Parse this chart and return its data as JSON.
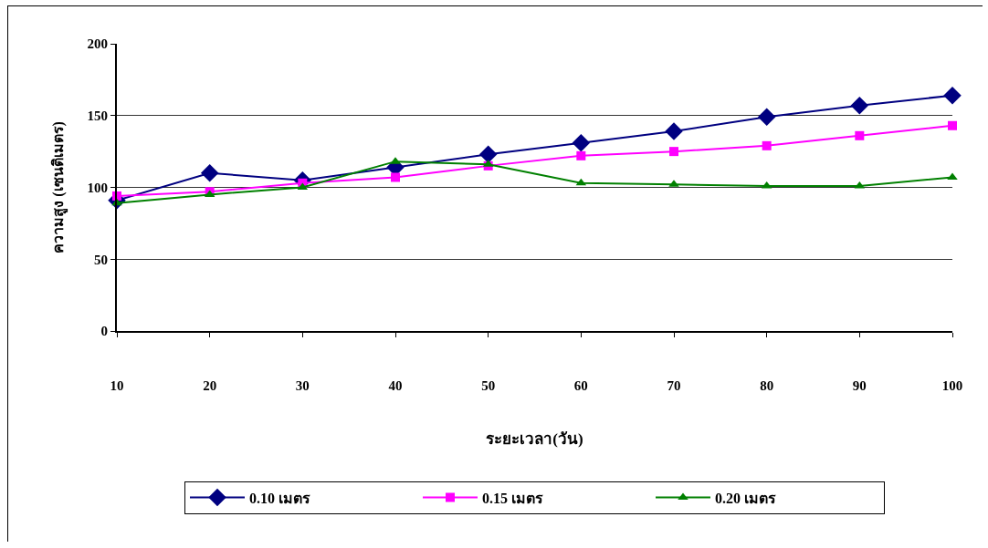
{
  "chart_data": {
    "type": "line",
    "xlabel": "ระยะเวลา(วัน)",
    "ylabel": "ความสูง (เซนติเมตร)",
    "categories": [
      "10",
      "20",
      "30",
      "40",
      "50",
      "60",
      "70",
      "80",
      "90",
      "100"
    ],
    "series": [
      {
        "name": "0.10 เมตร",
        "color": "#000080",
        "marker": "diamond",
        "values": [
          91,
          110,
          105,
          114,
          123,
          131,
          139,
          149,
          157,
          164
        ]
      },
      {
        "name": "0.15 เมตร",
        "color": "#ff00ff",
        "marker": "square",
        "values": [
          94,
          97,
          103,
          107,
          115,
          122,
          125,
          129,
          136,
          143
        ]
      },
      {
        "name": "0.20 เมตร",
        "color": "#008000",
        "marker": "triangle",
        "values": [
          89,
          95,
          100,
          118,
          116,
          103,
          102,
          101,
          101,
          107
        ]
      }
    ],
    "ylim": [
      0,
      200
    ],
    "yticks": [
      0,
      50,
      100,
      150,
      200
    ],
    "grid": "y",
    "legend": "bottom",
    "line_style": "solid"
  }
}
